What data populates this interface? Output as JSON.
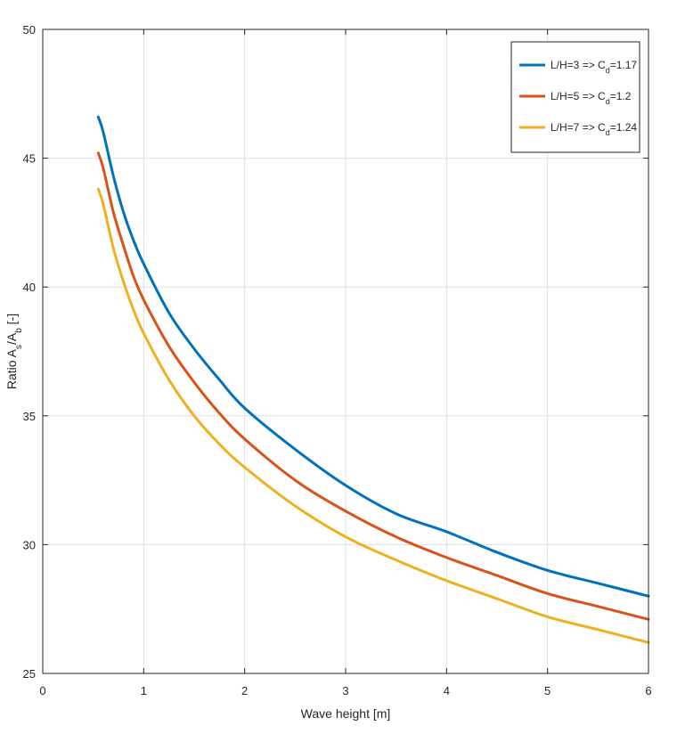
{
  "chart_data": {
    "type": "line",
    "xlabel": "Wave height [m]",
    "ylabel": {
      "prefix": "Ratio A",
      "sub1": "s",
      "middle": "/A",
      "sub2": "b",
      "suffix": " [-]"
    },
    "xlim": [
      0,
      6
    ],
    "ylim": [
      25,
      50
    ],
    "xticks": [
      "0",
      "1",
      "2",
      "3",
      "4",
      "5",
      "6"
    ],
    "yticks": [
      "25",
      "30",
      "35",
      "40",
      "45",
      "50"
    ],
    "grid": true,
    "legend_position": "top-right",
    "x": [
      0.55,
      0.6,
      0.7,
      0.8,
      0.9,
      1.0,
      1.25,
      1.5,
      1.75,
      2.0,
      2.5,
      3.0,
      3.5,
      4.0,
      4.5,
      5.0,
      5.5,
      6.0
    ],
    "series": [
      {
        "label": {
          "prefix": "L/H=3 => C",
          "sub": "d",
          "suffix": "=1.17"
        },
        "color": "#0072BD",
        "values": [
          46.6,
          46.0,
          44.3,
          42.9,
          41.8,
          40.9,
          39.0,
          37.6,
          36.4,
          35.3,
          33.7,
          32.3,
          31.2,
          30.5,
          29.7,
          29.0,
          28.5,
          28.0
        ]
      },
      {
        "label": {
          "prefix": "L/H=5 => C",
          "sub": "d",
          "suffix": "=1.2"
        },
        "color": "#D95319",
        "values": [
          45.2,
          44.6,
          42.9,
          41.6,
          40.4,
          39.5,
          37.7,
          36.3,
          35.1,
          34.1,
          32.5,
          31.3,
          30.3,
          29.5,
          28.8,
          28.1,
          27.6,
          27.1
        ]
      },
      {
        "label": {
          "prefix": "L/H=7 => C",
          "sub": "d",
          "suffix": "=1.24"
        },
        "color": "#EDB120",
        "values": [
          43.8,
          43.2,
          41.5,
          40.2,
          39.1,
          38.2,
          36.4,
          35.0,
          33.9,
          33.0,
          31.5,
          30.3,
          29.4,
          28.6,
          27.9,
          27.2,
          26.7,
          26.2
        ]
      }
    ]
  }
}
